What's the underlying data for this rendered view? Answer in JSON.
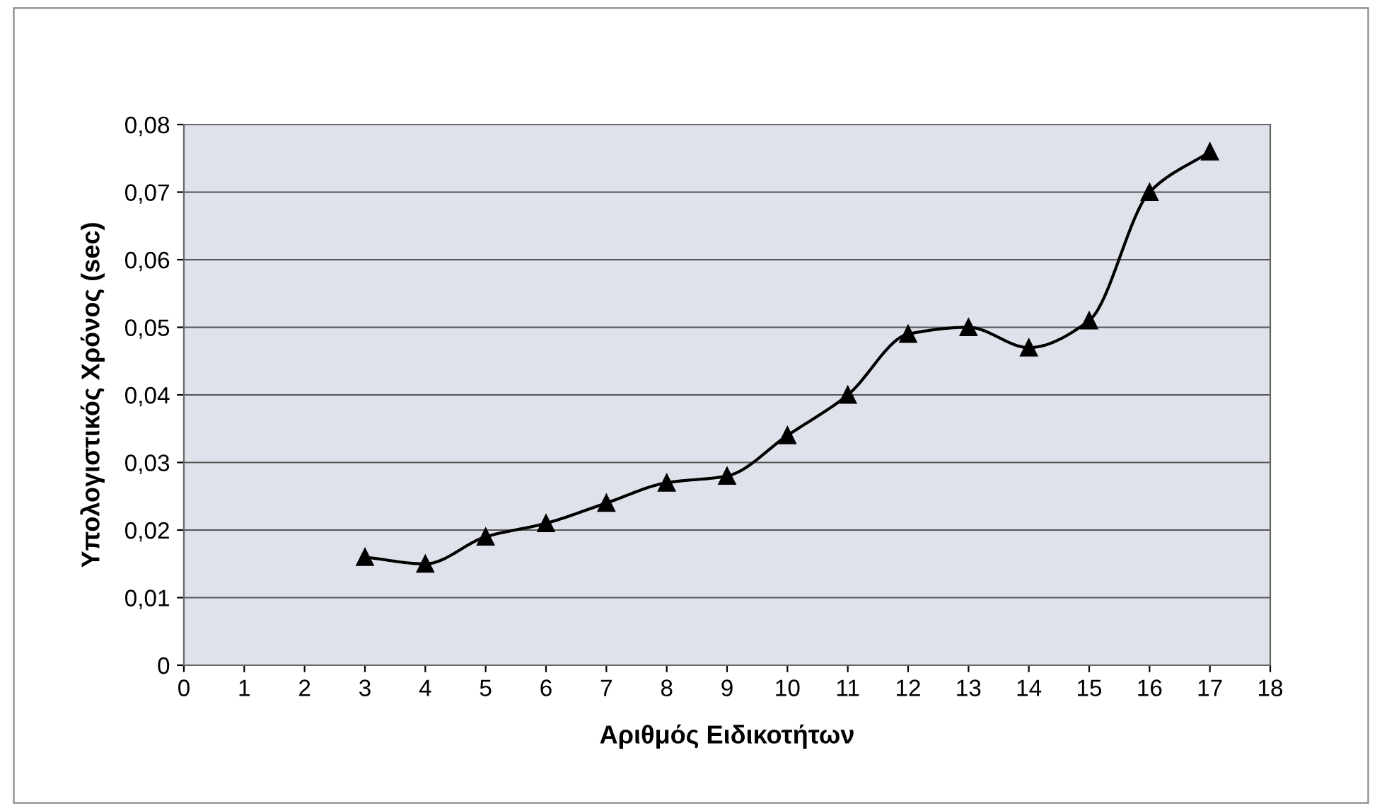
{
  "chart_data": {
    "type": "line",
    "xlabel": "Αριθμός Ειδικοτήτων",
    "ylabel": "Υπολογιστικός Χρόνος (sec)",
    "x": [
      3,
      4,
      5,
      6,
      7,
      8,
      9,
      10,
      11,
      12,
      13,
      14,
      15,
      16,
      17
    ],
    "series": [
      {
        "color": "#000000",
        "values": [
          0.016,
          0.015,
          0.019,
          0.021,
          0.024,
          0.027,
          0.028,
          0.034,
          0.04,
          0.049,
          0.05,
          0.047,
          0.051,
          0.07,
          0.076
        ]
      }
    ],
    "xlim": [
      0,
      18
    ],
    "xticks": [
      0,
      1,
      2,
      3,
      4,
      5,
      6,
      7,
      8,
      9,
      10,
      11,
      12,
      13,
      14,
      15,
      16,
      17,
      18
    ],
    "ylim": [
      0,
      0.08
    ],
    "yticks": [
      {
        "value": 0,
        "label": "0"
      },
      {
        "value": 0.01,
        "label": "0,01"
      },
      {
        "value": 0.02,
        "label": "0,02"
      },
      {
        "value": 0.03,
        "label": "0,03"
      },
      {
        "value": 0.04,
        "label": "0,04"
      },
      {
        "value": 0.05,
        "label": "0,05"
      },
      {
        "value": 0.06,
        "label": "0,06"
      },
      {
        "value": 0.07,
        "label": "0,07"
      },
      {
        "value": 0.08,
        "label": "0,08"
      }
    ],
    "grid": "y",
    "marker": "triangle",
    "line_style": "solid"
  }
}
